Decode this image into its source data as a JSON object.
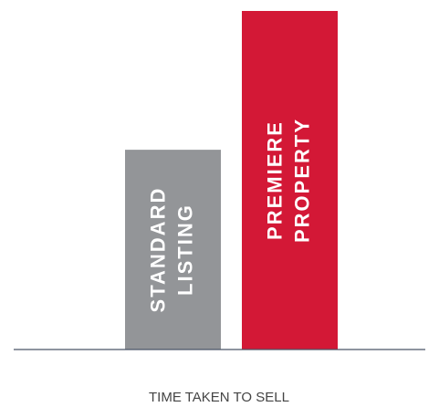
{
  "chart_data": {
    "type": "bar",
    "categories": [
      [
        "STANDARD",
        "LISTING"
      ],
      [
        "PREMIERE",
        "PROPERTY"
      ]
    ],
    "values": [
      59,
      100
    ],
    "colors": [
      "#939598",
      "#d31836"
    ],
    "ylim": [
      0,
      100
    ],
    "xlabel": "TIME TAKEN TO SELL"
  }
}
